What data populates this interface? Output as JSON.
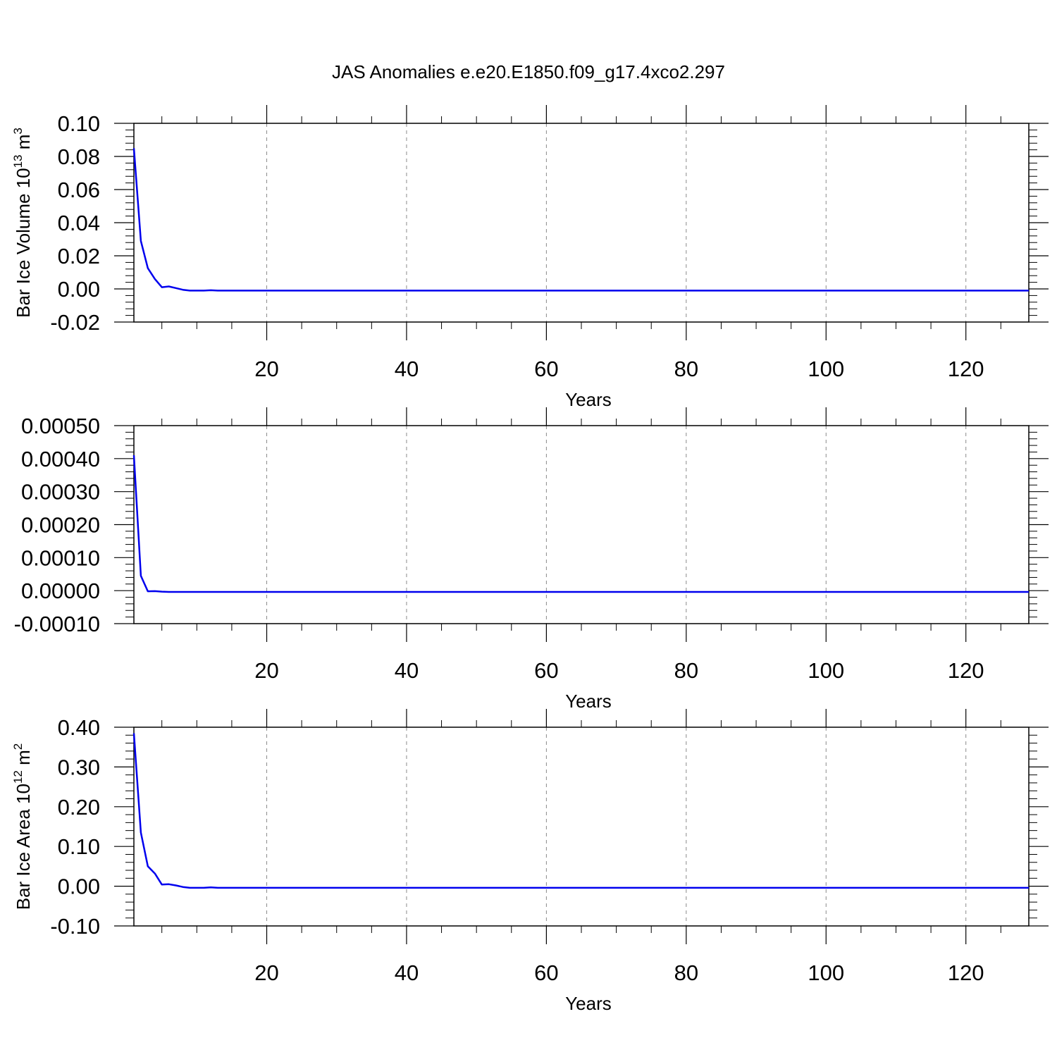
{
  "title": "JAS Anomalies e.e20.E1850.f09_g17.4xco2.297",
  "series_color": "#0000ee",
  "chart_data": [
    {
      "type": "line",
      "xlabel": "Years",
      "ylabel": {
        "text": "Bar Ice Volume 10",
        "sup": "13",
        "unit": " m",
        "unit_sup": "3"
      },
      "xlim": [
        1,
        129
      ],
      "ylim": [
        -0.02,
        0.1
      ],
      "xticks": [
        20,
        40,
        60,
        80,
        100,
        120
      ],
      "yticks": [
        -0.02,
        0.0,
        0.02,
        0.04,
        0.06,
        0.08,
        0.1
      ],
      "ytick_labels": [
        "-0.02",
        "0.00",
        "0.02",
        "0.04",
        "0.06",
        "0.08",
        "0.10"
      ],
      "grid_x": true,
      "series": [
        {
          "x": [
            1,
            2,
            3,
            4,
            5,
            6,
            7,
            8,
            9,
            10,
            11,
            12,
            13,
            129
          ],
          "y": [
            0.085,
            0.029,
            0.0125,
            0.006,
            0.001,
            0.0015,
            0.0005,
            -0.0005,
            -0.001,
            -0.001,
            -0.001,
            -0.0008,
            -0.001,
            -0.001
          ]
        }
      ]
    },
    {
      "type": "line",
      "xlabel": "Years",
      "ylabel": null,
      "xlim": [
        1,
        129
      ],
      "ylim": [
        -0.0001,
        0.0005
      ],
      "xticks": [
        20,
        40,
        60,
        80,
        100,
        120
      ],
      "yticks": [
        -0.0001,
        0.0,
        0.0001,
        0.0002,
        0.0003,
        0.0004,
        0.0005
      ],
      "ytick_labels": [
        "-0.00010",
        "0.00000",
        "0.00010",
        "0.00020",
        "0.00030",
        "0.00040",
        "0.00050"
      ],
      "grid_x": true,
      "series": [
        {
          "x": [
            1,
            2,
            3,
            4,
            5,
            6,
            129
          ],
          "y": [
            0.00041,
            4.5e-05,
            -2e-06,
            -1.5e-06,
            -3e-06,
            -4e-06,
            -4e-06
          ]
        }
      ]
    },
    {
      "type": "line",
      "xlabel": "Years",
      "ylabel": {
        "text": "Bar Ice Area 10",
        "sup": "12",
        "unit": " m",
        "unit_sup": "2"
      },
      "xlim": [
        1,
        129
      ],
      "ylim": [
        -0.1,
        0.4
      ],
      "xticks": [
        20,
        40,
        60,
        80,
        100,
        120
      ],
      "yticks": [
        -0.1,
        0.0,
        0.1,
        0.2,
        0.3,
        0.4
      ],
      "ytick_labels": [
        "-0.10",
        "0.00",
        "0.10",
        "0.20",
        "0.30",
        "0.40"
      ],
      "grid_x": true,
      "series": [
        {
          "x": [
            1,
            2,
            3,
            4,
            5,
            6,
            7,
            8,
            9,
            10,
            11,
            12,
            13,
            129
          ],
          "y": [
            0.385,
            0.135,
            0.05,
            0.032,
            0.004,
            0.005,
            0.002,
            -0.002,
            -0.004,
            -0.004,
            -0.004,
            -0.003,
            -0.004,
            -0.004
          ]
        }
      ]
    }
  ]
}
